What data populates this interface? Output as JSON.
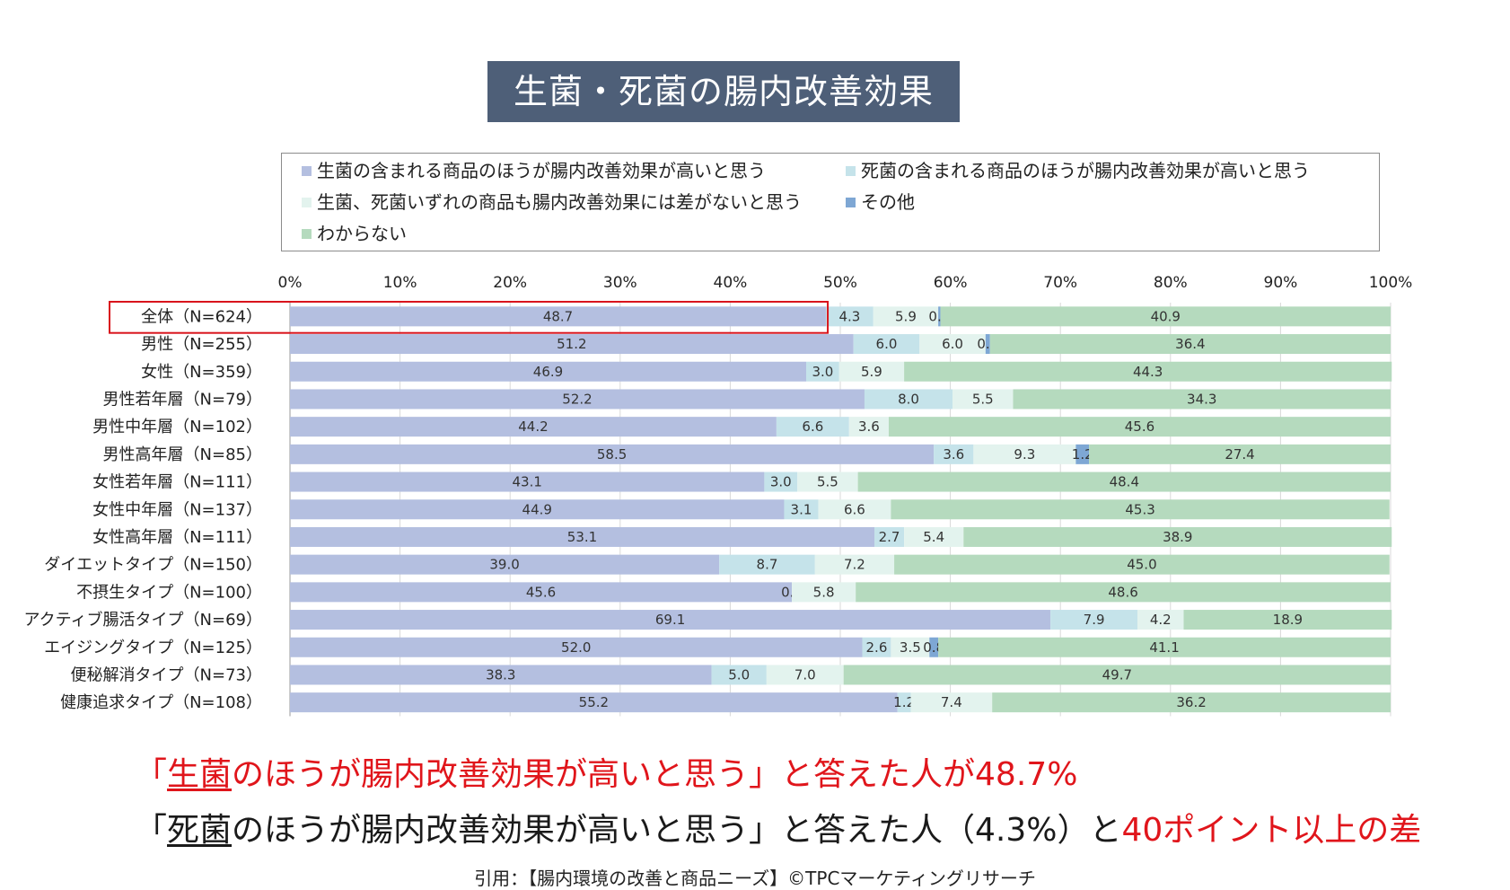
{
  "title": "生菌・死菌の腸内改善効果",
  "chart_data": {
    "type": "bar",
    "orientation": "horizontal",
    "stacked": true,
    "x_ticks": [
      "0%",
      "10%",
      "20%",
      "30%",
      "40%",
      "50%",
      "60%",
      "70%",
      "80%",
      "90%",
      "100%"
    ],
    "xlim": [
      0,
      100
    ],
    "legend_position": "top",
    "highlighted_category": "全体（N=624）",
    "categories": [
      "全体（N=624）",
      "男性（N=255）",
      "女性（N=359）",
      "男性若年層（N=79）",
      "男性中年層（N=102）",
      "男性高年層（N=85）",
      "女性若年層（N=111）",
      "女性中年層（N=137）",
      "女性高年層（N=111）",
      "ダイエットタイプ（N=150）",
      "不摂生タイプ（N=100）",
      "アクティブ腸活タイプ（N=69）",
      "エイジングタイプ（N=125）",
      "便秘解消タイプ（N=73）",
      "健康追求タイプ（N=108）"
    ],
    "series": [
      {
        "name": "生菌の含まれる商品のほうが腸内改善効果が高いと思う",
        "color": "#b4bfe0",
        "values": [
          48.7,
          51.2,
          46.9,
          52.2,
          44.2,
          58.5,
          43.1,
          44.9,
          53.1,
          39.0,
          45.6,
          69.1,
          52.0,
          38.3,
          55.2
        ],
        "labels": [
          "48.7",
          "51.2",
          "46.9",
          "52.2",
          "44.2",
          "58.5",
          "43.1",
          "44.9",
          "53.1",
          "39.0",
          "45.6",
          "69.1",
          "52.0",
          "38.3",
          "55.2"
        ]
      },
      {
        "name": "死菌の含まれる商品のほうが腸内改善効果が高いと思う",
        "color": "#c5e3ea",
        "values": [
          4.3,
          6.0,
          3.0,
          8.0,
          6.6,
          3.6,
          3.0,
          3.1,
          2.7,
          8.7,
          0.0,
          7.9,
          2.6,
          5.0,
          1.2
        ],
        "labels": [
          "4.3",
          "6.0",
          "3.0",
          "8.0",
          "6.6",
          "3.6",
          "3.0",
          "3.1",
          "2.7",
          "8.7",
          "0.0",
          "7.9",
          "2.6",
          "5.0",
          "1.2"
        ]
      },
      {
        "name": "生菌、死菌いずれの商品も腸内改善効果には差がないと思う",
        "color": "#e3f3ee",
        "values": [
          5.9,
          6.0,
          5.9,
          5.5,
          3.6,
          9.3,
          5.5,
          6.6,
          5.4,
          7.2,
          5.8,
          4.2,
          3.5,
          7.0,
          7.4
        ],
        "labels": [
          "5.9",
          "6.0",
          "5.9",
          "5.5",
          "3.6",
          "9.3",
          "5.5",
          "6.6",
          "5.4",
          "7.2",
          "5.8",
          "4.2",
          "3.5",
          "7.0",
          "7.4"
        ]
      },
      {
        "name": "その他",
        "color": "#7ea7d4",
        "values": [
          0.2,
          0.4,
          0,
          0,
          0,
          1.2,
          0,
          0,
          0,
          0,
          0,
          0,
          0.8,
          0,
          0
        ],
        "labels": [
          "0.2",
          "0.4",
          "",
          "",
          "",
          "1.2",
          "",
          "",
          "",
          "",
          "",
          "",
          "0.8",
          "",
          ""
        ]
      },
      {
        "name": "わからない",
        "color": "#b5dabe",
        "values": [
          40.9,
          36.4,
          44.3,
          34.3,
          45.6,
          27.4,
          48.4,
          45.3,
          38.9,
          45.0,
          48.6,
          18.9,
          41.1,
          49.7,
          36.2
        ],
        "labels": [
          "40.9",
          "36.4",
          "44.3",
          "34.3",
          "45.6",
          "27.4",
          "48.4",
          "45.3",
          "38.9",
          "45.0",
          "48.6",
          "18.9",
          "41.1",
          "49.7",
          "36.2"
        ]
      }
    ]
  },
  "summary": {
    "line1": {
      "open": "「",
      "emph": "生菌",
      "rest": "のほうが腸内改善効果が高いと思う」と答えた人が48.7%"
    },
    "line2": {
      "open": "「",
      "emph": "死菌",
      "rest": "のほうが腸内改善効果が高いと思う」と答えた人（4.3%）と",
      "red": "40ポイント以上の差"
    }
  },
  "citation": "引用：【腸内環境の改善と商品ニーズ】©TPCマーケティングリサーチ"
}
